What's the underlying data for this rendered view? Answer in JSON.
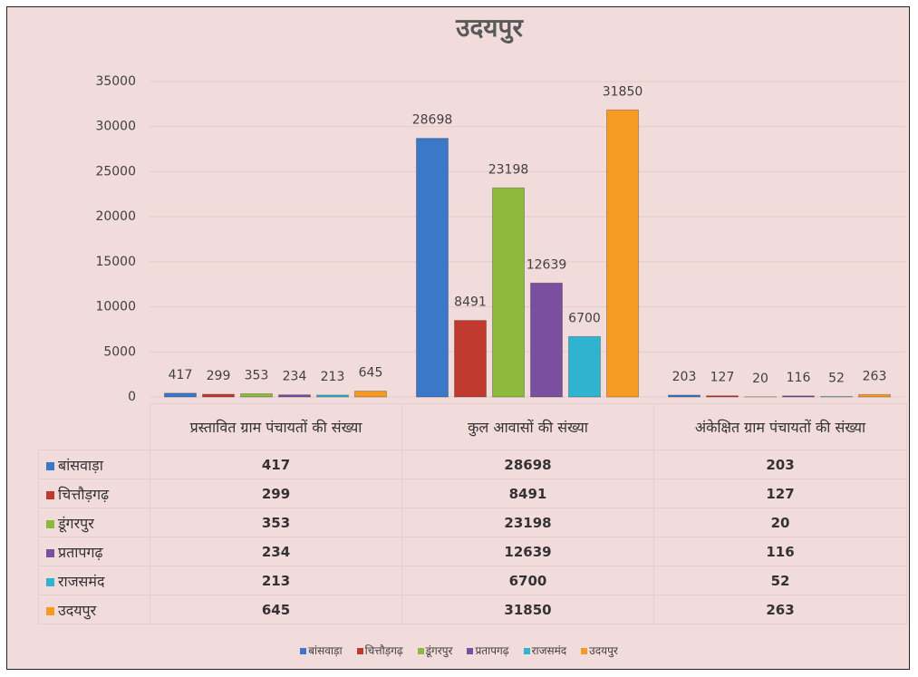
{
  "chart_data": {
    "type": "bar",
    "title": "उदयपुर",
    "categories": [
      "प्रस्तावित ग्राम पंचायतों की संख्या",
      "कुल  आवासों की संख्या",
      "अंकेक्षित ग्राम पंचायतों की संख्या"
    ],
    "series": [
      {
        "name": "बांसवाड़ा",
        "color": "#3b78c8",
        "values": [
          417,
          28698,
          203
        ]
      },
      {
        "name": "चित्तौड़गढ़",
        "color": "#c0392f",
        "values": [
          299,
          8491,
          127
        ]
      },
      {
        "name": "डूंगरपुर",
        "color": "#8dba3c",
        "values": [
          353,
          23198,
          20
        ]
      },
      {
        "name": "प्रतापगढ़",
        "color": "#7b4f9f",
        "values": [
          234,
          12639,
          116
        ]
      },
      {
        "name": "राजसमंद",
        "color": "#2fb3cf",
        "values": [
          213,
          6700,
          52
        ]
      },
      {
        "name": "उदयपुर",
        "color": "#f59a23",
        "values": [
          645,
          31850,
          263
        ]
      }
    ],
    "ylim": [
      0,
      35000
    ],
    "yticks": [
      0,
      5000,
      10000,
      15000,
      20000,
      25000,
      30000,
      35000
    ],
    "grid": true
  }
}
